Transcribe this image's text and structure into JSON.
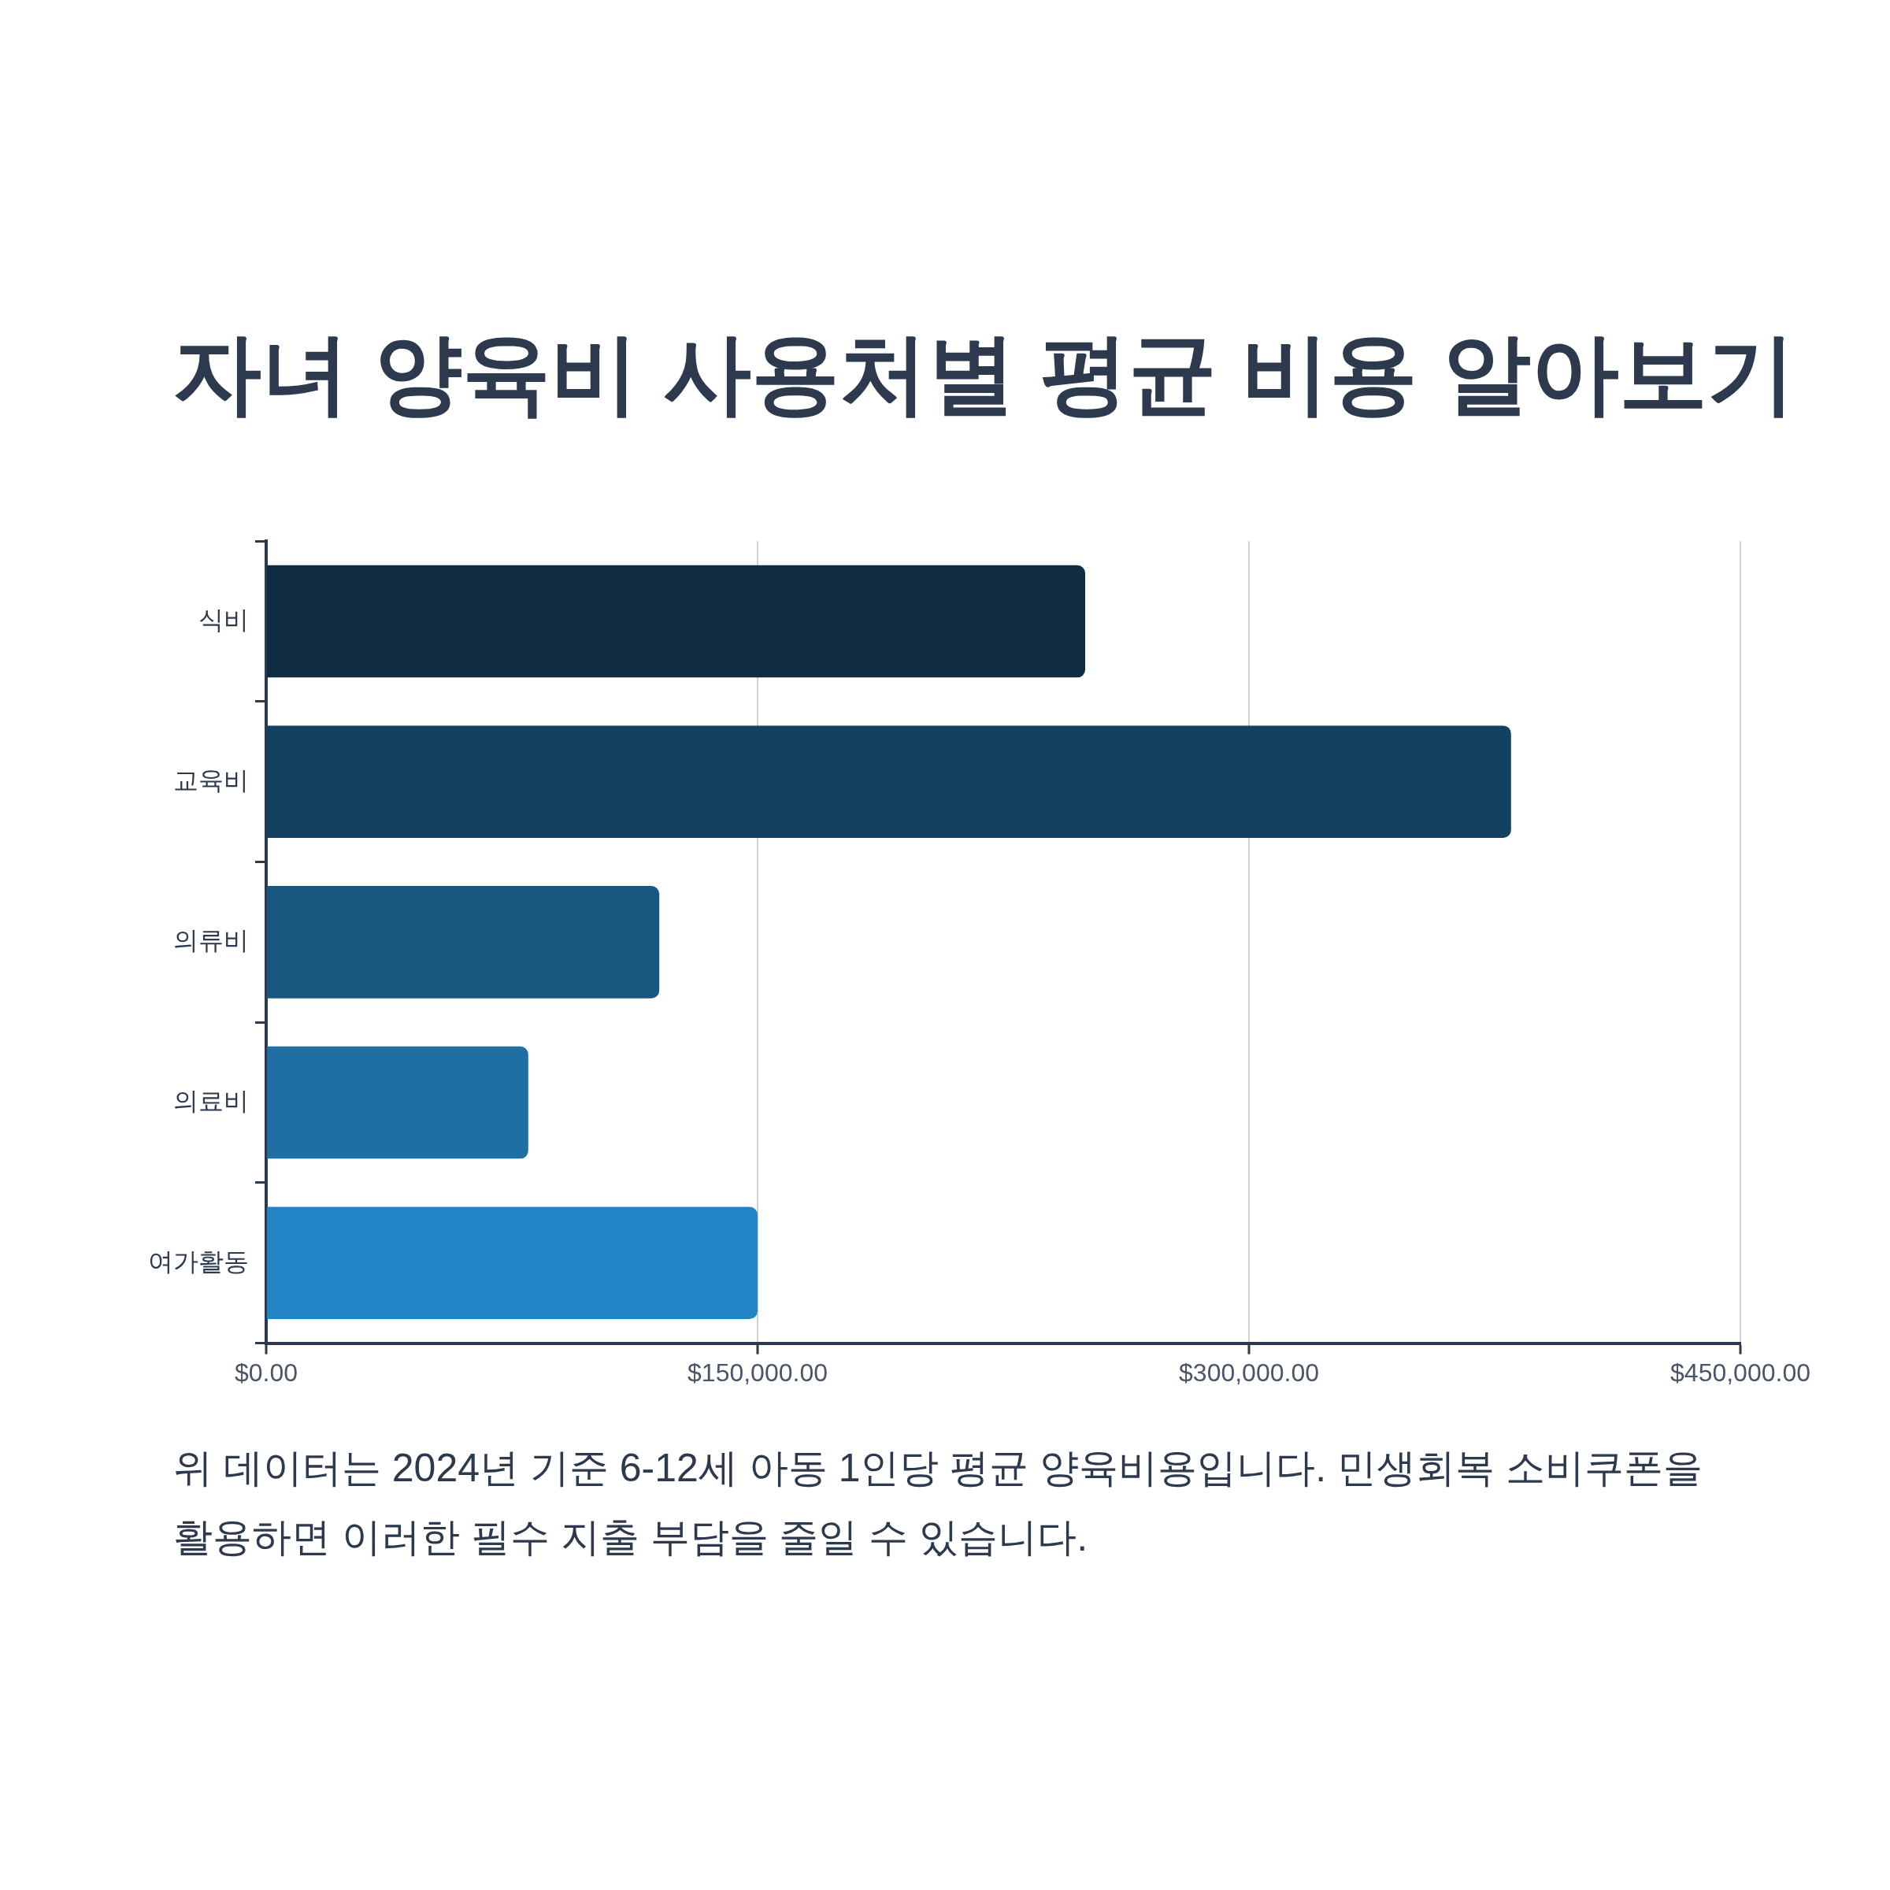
{
  "chart_data": {
    "type": "bar",
    "orientation": "horizontal",
    "title": "자녀 양육비 사용처별 평균 비용 알아보기",
    "categories": [
      "식비",
      "교육비",
      "의류비",
      "의료비",
      "여가활동"
    ],
    "values": [
      250000,
      380000,
      120000,
      80000,
      150000
    ],
    "colors": [
      "#0f2c42",
      "#134260",
      "#1a5780",
      "#1f6fa5",
      "#2385c6"
    ],
    "xlim": [
      0,
      450000
    ],
    "xticks": [
      {
        "value": 0,
        "label": "$0.00"
      },
      {
        "value": 150000,
        "label": "$150,000.00"
      },
      {
        "value": 300000,
        "label": "$300,000.00"
      },
      {
        "value": 450000,
        "label": "$450,000.00"
      }
    ],
    "grid": "x",
    "annotations": [
      "위 데이터는 2024년 기준 6-12세 아동 1인당 평균 양육비용입니다. 민생회복 소비쿠폰을 활용하면 이러한 필수 지출 부담을 줄일 수 있습니다."
    ]
  }
}
